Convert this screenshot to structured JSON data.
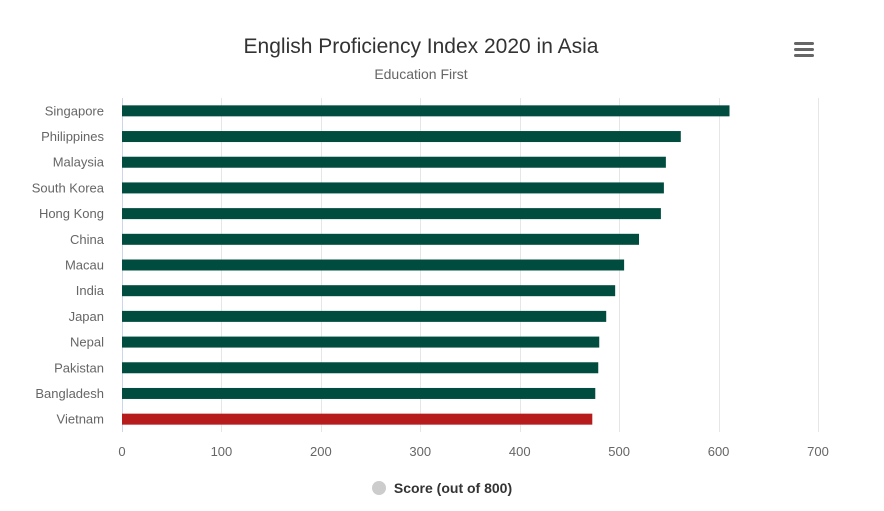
{
  "chart_data": {
    "type": "bar",
    "orientation": "horizontal",
    "title": "English Proficiency Index 2020 in Asia",
    "subtitle": "Education First",
    "categories": [
      "Singapore",
      "Philippines",
      "Malaysia",
      "South Korea",
      "Hong Kong",
      "China",
      "Macau",
      "India",
      "Japan",
      "Nepal",
      "Pakistan",
      "Bangladesh",
      "Vietnam"
    ],
    "series": [
      {
        "name": "Score (out of 800)",
        "values": [
          611,
          562,
          547,
          545,
          542,
          520,
          505,
          496,
          487,
          480,
          479,
          476,
          473
        ]
      }
    ],
    "ylim": [
      0,
      700
    ],
    "xticks": [
      "0",
      "100",
      "200",
      "300",
      "400",
      "500",
      "600",
      "700"
    ],
    "grid": true,
    "legend": "bottom-center",
    "colors": {
      "bar": "#004d40",
      "highlight": "#b71c1c",
      "legend_marker": "#cccccc"
    },
    "highlight_category": "Vietnam"
  }
}
